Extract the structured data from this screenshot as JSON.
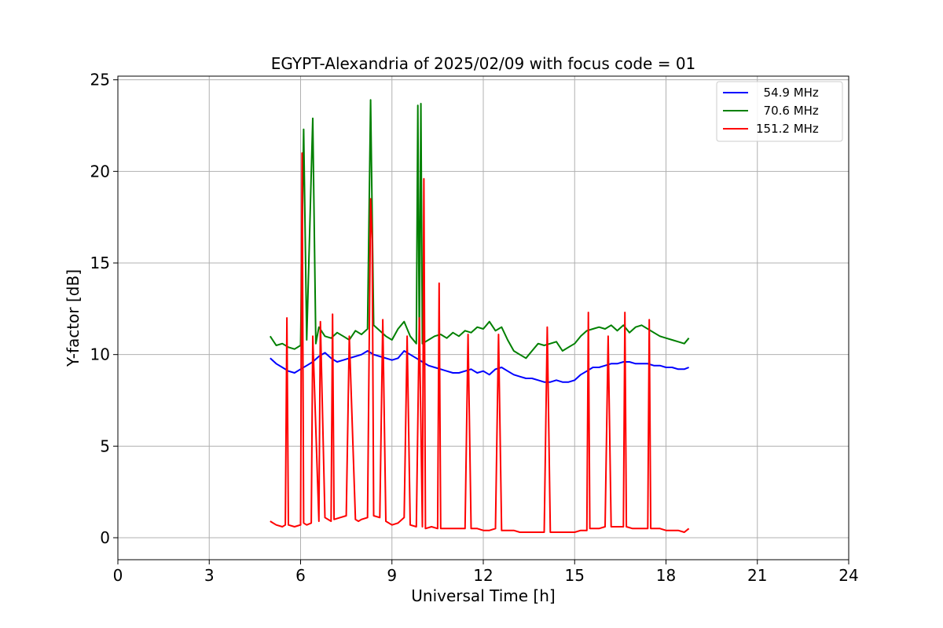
{
  "chart_data": {
    "type": "line",
    "title": "EGYPT-Alexandria of 2025/02/09 with focus code = 01",
    "xlabel": "Universal Time [h]",
    "ylabel": "Y-factor [dB]",
    "xlim": [
      0,
      24
    ],
    "ylim": [
      -1.2,
      25.2
    ],
    "xticks": [
      0,
      3,
      6,
      9,
      12,
      15,
      18,
      21,
      24
    ],
    "yticks": [
      0,
      5,
      10,
      15,
      20,
      25
    ],
    "grid": true,
    "legend_position": "top-right",
    "series": [
      {
        "name": "  54.9 MHz",
        "color": "#0000ff",
        "x": [
          5.0,
          5.2,
          5.4,
          5.6,
          5.8,
          6.0,
          6.2,
          6.4,
          6.6,
          6.8,
          7.0,
          7.2,
          7.4,
          7.6,
          7.8,
          8.0,
          8.2,
          8.4,
          8.6,
          8.8,
          9.0,
          9.2,
          9.4,
          9.6,
          9.8,
          10.0,
          10.2,
          10.4,
          10.6,
          10.8,
          11.0,
          11.2,
          11.4,
          11.6,
          11.8,
          12.0,
          12.2,
          12.4,
          12.6,
          12.8,
          13.0,
          13.2,
          13.4,
          13.6,
          13.8,
          14.0,
          14.2,
          14.4,
          14.6,
          14.8,
          15.0,
          15.2,
          15.4,
          15.6,
          15.8,
          16.0,
          16.2,
          16.4,
          16.6,
          16.8,
          17.0,
          17.2,
          17.4,
          17.6,
          17.8,
          18.0,
          18.2,
          18.4,
          18.6,
          18.75
        ],
        "y": [
          9.8,
          9.5,
          9.3,
          9.1,
          9.0,
          9.2,
          9.4,
          9.6,
          9.9,
          10.1,
          9.8,
          9.6,
          9.7,
          9.8,
          9.9,
          10.0,
          10.2,
          10.0,
          9.9,
          9.8,
          9.7,
          9.8,
          10.2,
          10.0,
          9.8,
          9.6,
          9.4,
          9.3,
          9.2,
          9.1,
          9.0,
          9.0,
          9.1,
          9.2,
          9.0,
          9.1,
          8.9,
          9.2,
          9.3,
          9.1,
          8.9,
          8.8,
          8.7,
          8.7,
          8.6,
          8.5,
          8.5,
          8.6,
          8.5,
          8.5,
          8.6,
          8.9,
          9.1,
          9.3,
          9.3,
          9.4,
          9.5,
          9.5,
          9.6,
          9.6,
          9.5,
          9.5,
          9.5,
          9.4,
          9.4,
          9.3,
          9.3,
          9.2,
          9.2,
          9.3
        ]
      },
      {
        "name": "  70.6 MHz",
        "color": "#008000",
        "x": [
          5.0,
          5.2,
          5.4,
          5.6,
          5.8,
          6.0,
          6.1,
          6.2,
          6.4,
          6.5,
          6.6,
          6.8,
          7.0,
          7.2,
          7.4,
          7.6,
          7.8,
          8.0,
          8.2,
          8.3,
          8.4,
          8.6,
          8.8,
          9.0,
          9.2,
          9.4,
          9.6,
          9.8,
          9.85,
          9.9,
          9.95,
          10.0,
          10.2,
          10.4,
          10.6,
          10.8,
          11.0,
          11.2,
          11.4,
          11.6,
          11.8,
          12.0,
          12.2,
          12.4,
          12.6,
          12.8,
          13.0,
          13.2,
          13.4,
          13.6,
          13.8,
          14.0,
          14.2,
          14.4,
          14.6,
          14.8,
          15.0,
          15.2,
          15.4,
          15.6,
          15.8,
          16.0,
          16.2,
          16.4,
          16.6,
          16.8,
          17.0,
          17.2,
          17.4,
          17.6,
          17.8,
          18.0,
          18.2,
          18.4,
          18.6,
          18.75
        ],
        "y": [
          11.0,
          10.5,
          10.6,
          10.4,
          10.3,
          10.5,
          22.3,
          10.8,
          22.9,
          10.6,
          11.5,
          11.0,
          10.9,
          11.2,
          11.0,
          10.8,
          11.3,
          11.1,
          11.4,
          23.9,
          11.6,
          11.3,
          11.0,
          10.8,
          11.4,
          11.8,
          11.0,
          10.6,
          23.6,
          10.5,
          23.7,
          10.6,
          10.8,
          11.0,
          11.1,
          10.9,
          11.2,
          11.0,
          11.3,
          11.2,
          11.5,
          11.4,
          11.8,
          11.3,
          11.5,
          10.8,
          10.2,
          10.0,
          9.8,
          10.2,
          10.6,
          10.5,
          10.6,
          10.7,
          10.2,
          10.4,
          10.6,
          11.0,
          11.3,
          11.4,
          11.5,
          11.4,
          11.6,
          11.3,
          11.6,
          11.2,
          11.5,
          11.6,
          11.4,
          11.2,
          11.0,
          10.9,
          10.8,
          10.7,
          10.6,
          10.9
        ]
      },
      {
        "name": "151.2 MHz",
        "color": "#ff0000",
        "x": [
          5.0,
          5.2,
          5.4,
          5.5,
          5.55,
          5.6,
          5.8,
          6.0,
          6.05,
          6.1,
          6.2,
          6.35,
          6.4,
          6.6,
          6.65,
          6.8,
          7.0,
          7.05,
          7.1,
          7.3,
          7.5,
          7.6,
          7.8,
          7.9,
          8.0,
          8.2,
          8.3,
          8.35,
          8.4,
          8.6,
          8.7,
          8.8,
          9.0,
          9.2,
          9.4,
          9.5,
          9.6,
          9.8,
          9.9,
          10.0,
          10.05,
          10.1,
          10.3,
          10.5,
          10.55,
          10.6,
          10.8,
          11.0,
          11.2,
          11.4,
          11.5,
          11.6,
          11.8,
          12.0,
          12.2,
          12.4,
          12.5,
          12.6,
          12.8,
          13.0,
          13.2,
          13.4,
          13.6,
          13.8,
          14.0,
          14.1,
          14.2,
          14.4,
          14.6,
          14.8,
          15.0,
          15.2,
          15.4,
          15.45,
          15.5,
          15.8,
          16.0,
          16.1,
          16.2,
          16.4,
          16.6,
          16.65,
          16.7,
          16.9,
          17.2,
          17.4,
          17.45,
          17.5,
          17.8,
          18.0,
          18.2,
          18.4,
          18.6,
          18.75
        ],
        "y": [
          0.9,
          0.7,
          0.6,
          0.7,
          12.0,
          0.7,
          0.6,
          0.7,
          21.0,
          0.8,
          0.7,
          0.8,
          11.0,
          0.9,
          11.8,
          1.1,
          0.9,
          12.2,
          1.0,
          1.1,
          1.2,
          11.0,
          1.0,
          0.9,
          1.0,
          1.1,
          18.5,
          16.3,
          1.2,
          1.1,
          11.9,
          0.9,
          0.7,
          0.8,
          1.1,
          11.0,
          0.7,
          0.6,
          12.0,
          0.6,
          19.6,
          0.5,
          0.6,
          0.5,
          13.9,
          0.5,
          0.5,
          0.5,
          0.5,
          0.5,
          11.1,
          0.5,
          0.5,
          0.4,
          0.4,
          0.5,
          11.1,
          0.4,
          0.4,
          0.4,
          0.3,
          0.3,
          0.3,
          0.3,
          0.3,
          11.5,
          0.3,
          0.3,
          0.3,
          0.3,
          0.3,
          0.4,
          0.4,
          12.3,
          0.5,
          0.5,
          0.6,
          11.0,
          0.6,
          0.6,
          0.6,
          12.3,
          0.6,
          0.5,
          0.5,
          0.5,
          11.9,
          0.5,
          0.5,
          0.4,
          0.4,
          0.4,
          0.3,
          0.5
        ]
      }
    ]
  }
}
